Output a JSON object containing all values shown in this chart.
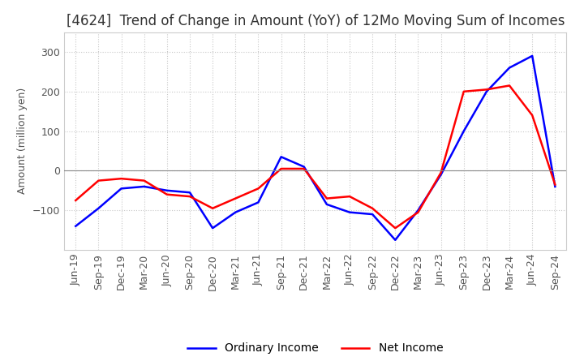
{
  "title": "[4624]  Trend of Change in Amount (YoY) of 12Mo Moving Sum of Incomes",
  "ylabel": "Amount (million yen)",
  "xlim_labels": [
    "Jun-19",
    "Sep-19",
    "Dec-19",
    "Mar-20",
    "Jun-20",
    "Sep-20",
    "Dec-20",
    "Mar-21",
    "Jun-21",
    "Sep-21",
    "Dec-21",
    "Mar-22",
    "Jun-22",
    "Sep-22",
    "Dec-22",
    "Mar-23",
    "Jun-23",
    "Sep-23",
    "Dec-23",
    "Mar-24",
    "Jun-24",
    "Sep-24"
  ],
  "ordinary_income": [
    -140,
    -95,
    -45,
    -40,
    -50,
    -55,
    -145,
    -105,
    -80,
    35,
    10,
    -85,
    -105,
    -110,
    -175,
    -100,
    -10,
    100,
    200,
    260,
    290,
    -40
  ],
  "net_income": [
    -75,
    -25,
    -20,
    -25,
    -60,
    -65,
    -95,
    -70,
    -45,
    5,
    5,
    -70,
    -65,
    -95,
    -145,
    -105,
    -5,
    200,
    205,
    215,
    140,
    -35
  ],
  "ordinary_color": "#0000ff",
  "net_color": "#ff0000",
  "background_color": "#ffffff",
  "grid_color": "#c8c8c8",
  "ylim": [
    -200,
    350
  ],
  "yticks": [
    -100,
    0,
    100,
    200,
    300
  ],
  "legend_labels": [
    "Ordinary Income",
    "Net Income"
  ],
  "title_fontsize": 12,
  "label_fontsize": 9,
  "tick_fontsize": 9
}
